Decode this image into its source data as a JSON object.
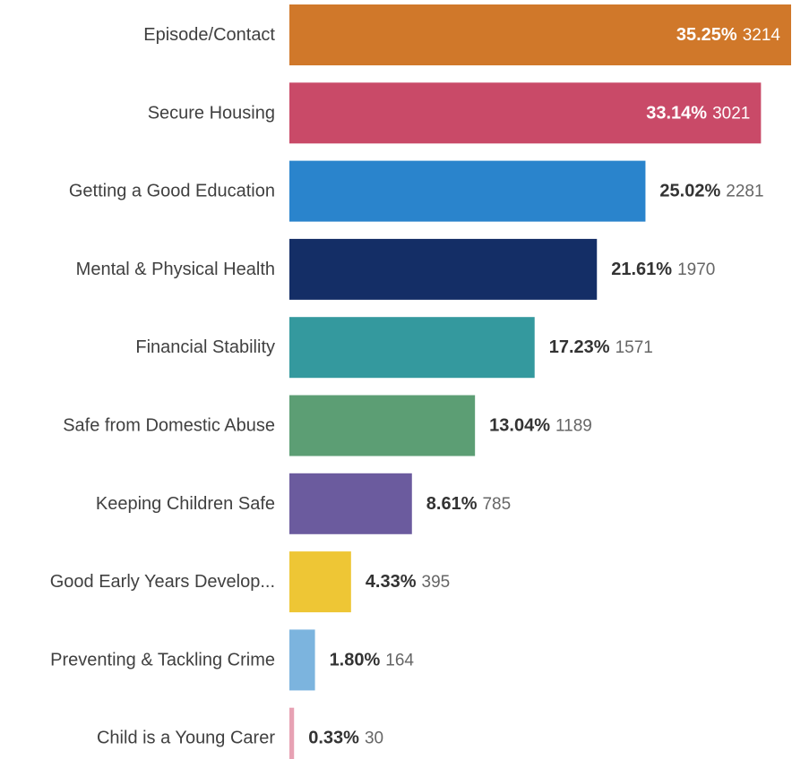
{
  "chart_data": {
    "type": "bar",
    "orientation": "horizontal",
    "categories": [
      "Episode/Contact",
      "Secure Housing",
      "Getting a Good Education",
      "Mental & Physical Health",
      "Financial Stability",
      "Safe from Domestic Abuse",
      "Keeping Children Safe",
      "Good Early Years Develop...",
      "Preventing & Tackling Crime",
      "Child is a Young Carer"
    ],
    "values": [
      3214,
      3021,
      2281,
      1970,
      1571,
      1189,
      785,
      395,
      164,
      30
    ],
    "percent_labels": [
      "35.25%",
      "33.14%",
      "25.02%",
      "21.61%",
      "17.23%",
      "13.04%",
      "8.61%",
      "4.33%",
      "1.80%",
      "0.33%"
    ],
    "count_labels": [
      "3214",
      "3021",
      "2281",
      "1970",
      "1571",
      "1189",
      "785",
      "395",
      "164",
      "30"
    ],
    "colors": [
      "#D0782A",
      "#C94A68",
      "#2A84CC",
      "#142E66",
      "#34999E",
      "#5C9E74",
      "#6B5B9E",
      "#EEC635",
      "#7CB4DE",
      "#E7A2B4"
    ],
    "labels_inside": [
      true,
      true,
      false,
      false,
      false,
      false,
      false,
      false,
      false,
      false
    ],
    "title": "",
    "xlabel": "",
    "ylabel": "",
    "xlim": [
      0,
      3214
    ],
    "grid": false,
    "legend": "none"
  }
}
